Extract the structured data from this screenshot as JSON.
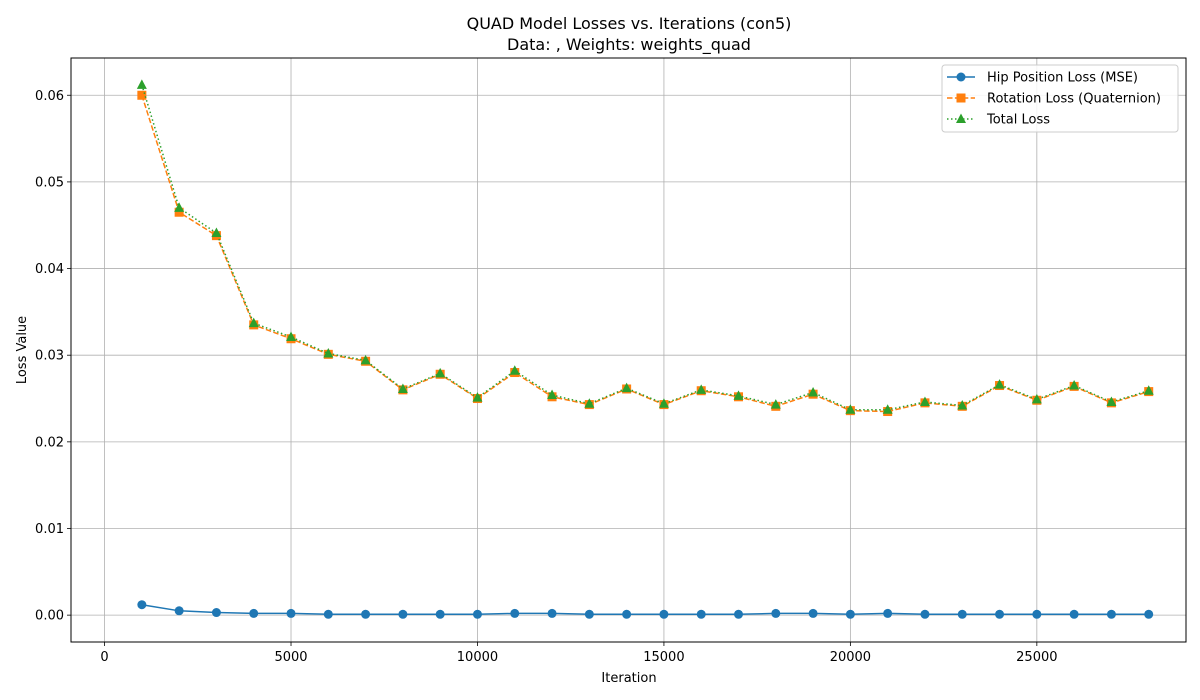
{
  "chart_data": {
    "type": "line",
    "title": "QUAD Model Losses vs. Iterations (con5)",
    "subtitle": "Data: , Weights: weights_quad",
    "xlabel": "Iteration",
    "ylabel": "Loss Value",
    "xlim": [
      -900,
      29000
    ],
    "ylim": [
      -0.0031,
      0.0643
    ],
    "xticks": [
      0,
      5000,
      10000,
      15000,
      20000,
      25000
    ],
    "xtick_labels": [
      "0",
      "5000",
      "10000",
      "15000",
      "20000",
      "25000"
    ],
    "yticks": [
      0.0,
      0.01,
      0.02,
      0.03,
      0.04,
      0.05,
      0.06
    ],
    "ytick_labels": [
      "0.00",
      "0.01",
      "0.02",
      "0.03",
      "0.04",
      "0.05",
      "0.06"
    ],
    "grid": true,
    "legend_position": "upper-right",
    "x": [
      1000,
      2000,
      3000,
      4000,
      5000,
      6000,
      7000,
      8000,
      9000,
      10000,
      11000,
      12000,
      13000,
      14000,
      15000,
      16000,
      17000,
      18000,
      19000,
      20000,
      21000,
      22000,
      23000,
      24000,
      25000,
      26000,
      27000,
      28000
    ],
    "series": [
      {
        "name": "Hip Position Loss (MSE)",
        "color": "#1f77b4",
        "line_style": "solid",
        "marker": "circle",
        "values": [
          0.0012,
          0.0005,
          0.0003,
          0.0002,
          0.0002,
          0.0001,
          0.0001,
          0.0001,
          0.0001,
          0.0001,
          0.0002,
          0.0002,
          0.0001,
          0.0001,
          0.0001,
          0.0001,
          0.0001,
          0.0002,
          0.0002,
          0.0001,
          0.0002,
          0.0001,
          0.0001,
          0.0001,
          0.0001,
          0.0001,
          0.0001,
          0.0001
        ]
      },
      {
        "name": "Rotation Loss (Quaternion)",
        "color": "#ff7f0e",
        "line_style": "dashed",
        "marker": "square",
        "values": [
          0.06,
          0.0465,
          0.0438,
          0.0335,
          0.0319,
          0.0301,
          0.0293,
          0.026,
          0.0278,
          0.025,
          0.028,
          0.0252,
          0.0243,
          0.0261,
          0.0243,
          0.0259,
          0.0252,
          0.0241,
          0.0255,
          0.0236,
          0.0235,
          0.0245,
          0.0241,
          0.0265,
          0.0248,
          0.0264,
          0.0245,
          0.0258
        ]
      },
      {
        "name": "Total Loss",
        "color": "#2ca02c",
        "line_style": "dotted",
        "marker": "triangle",
        "values": [
          0.0612,
          0.047,
          0.0441,
          0.0337,
          0.0321,
          0.0302,
          0.0294,
          0.0261,
          0.0279,
          0.0251,
          0.0282,
          0.0254,
          0.0244,
          0.0262,
          0.0244,
          0.026,
          0.0253,
          0.0243,
          0.0257,
          0.0237,
          0.0237,
          0.0246,
          0.0242,
          0.0266,
          0.0249,
          0.0265,
          0.0246,
          0.0259
        ]
      }
    ]
  }
}
